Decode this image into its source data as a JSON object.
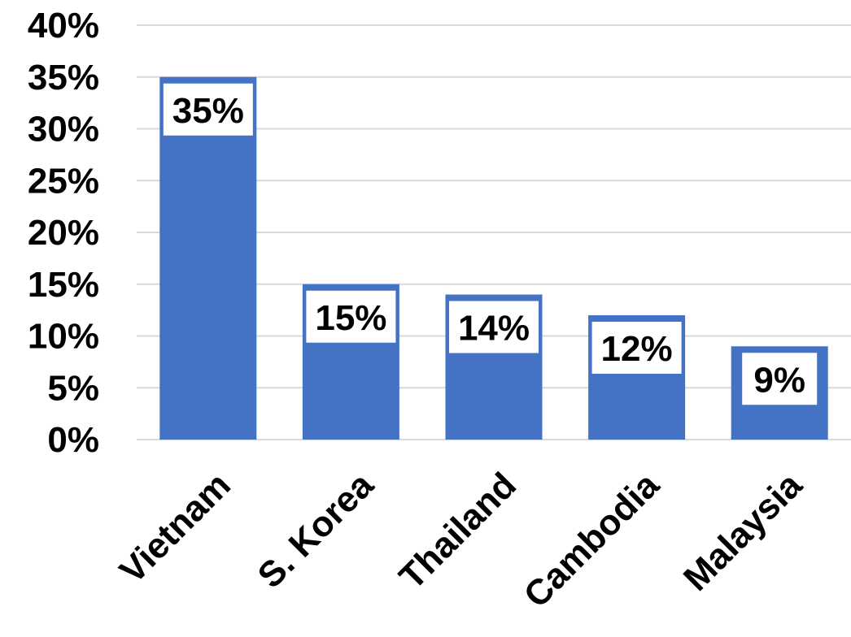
{
  "chart_data": {
    "type": "bar",
    "title": "",
    "xlabel": "",
    "ylabel": "",
    "categories": [
      "Vietnam",
      "S. Korea",
      "Thailand",
      "Cambodia",
      "Malaysia"
    ],
    "values": [
      35,
      15,
      14,
      12,
      9
    ],
    "data_labels": [
      "35%",
      "15%",
      "14%",
      "12%",
      "9%"
    ],
    "ylim": [
      0,
      40
    ],
    "yticks": [
      0,
      5,
      10,
      15,
      20,
      25,
      30,
      35,
      40
    ],
    "ytick_labels": [
      "0%",
      "5%",
      "10%",
      "15%",
      "20%",
      "25%",
      "30%",
      "35%",
      "40%"
    ],
    "grid": true,
    "legend": "none",
    "bar_color": "#4472C4",
    "grid_color": "#D9D9D9",
    "text_color": "#000000"
  }
}
